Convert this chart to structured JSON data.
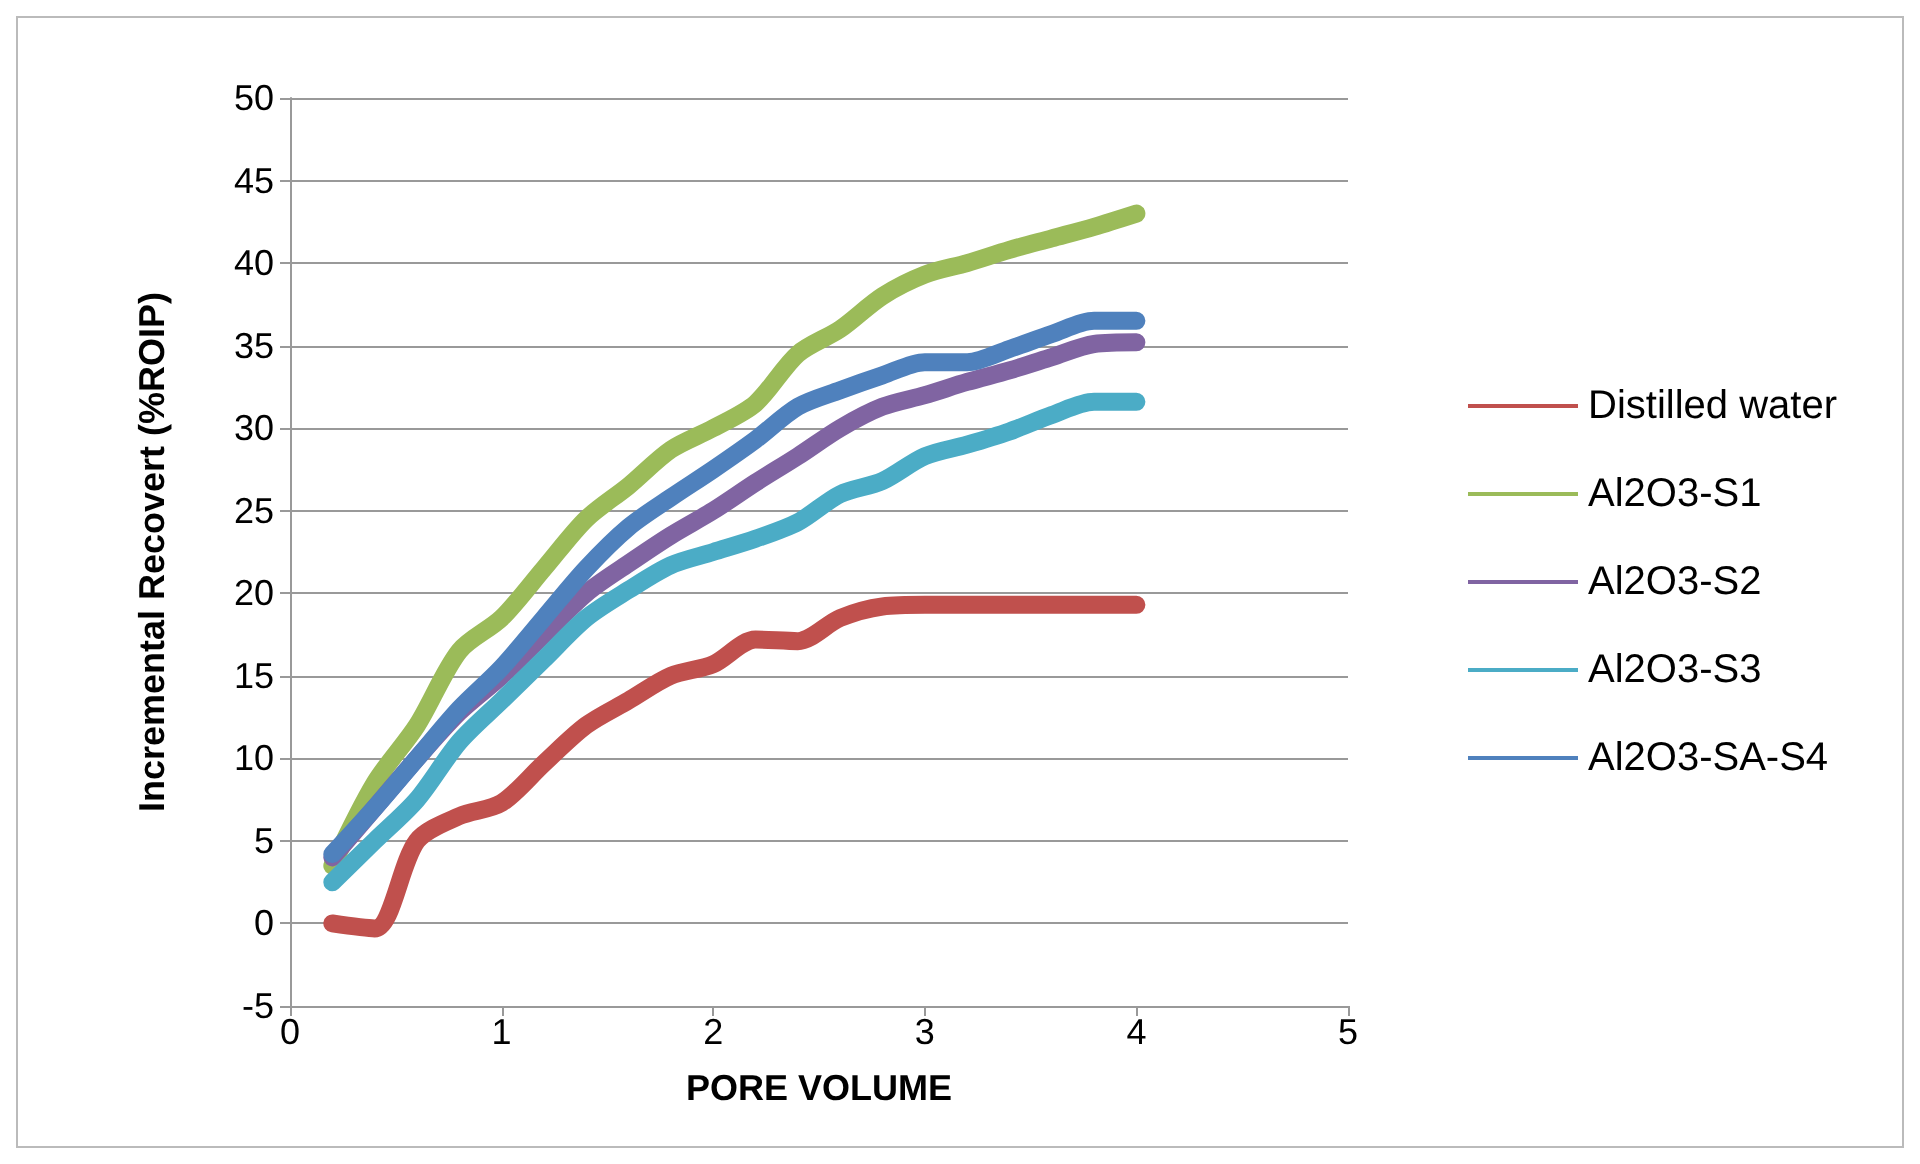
{
  "chart_data": {
    "type": "line",
    "xlabel": "PORE VOLUME",
    "ylabel": "Incremental Recovert (%ROIP)",
    "x": [
      0.2,
      0.4,
      0.6,
      0.8,
      1.0,
      1.2,
      1.4,
      1.6,
      1.8,
      2.0,
      2.2,
      2.4,
      2.6,
      2.8,
      3.0,
      3.2,
      3.4,
      3.6,
      3.8,
      4.0
    ],
    "series": [
      {
        "name": "Distilled water",
        "color": "#c0504d",
        "values": [
          0,
          -0.3,
          5,
          6.5,
          7.3,
          9.7,
          12,
          13.5,
          15,
          15.7,
          17.2,
          17.1,
          18.5,
          19.2,
          19.3,
          19.3,
          19.3,
          19.3,
          19.3,
          19.3
        ]
      },
      {
        "name": "Al2O3-S1",
        "color": "#9bbb59",
        "values": [
          3.5,
          8.5,
          12,
          16.5,
          18.5,
          21.5,
          24.5,
          26.5,
          28.7,
          30,
          31.5,
          34.5,
          36,
          38,
          39.3,
          40,
          40.8,
          41.5,
          42.2,
          43
        ]
      },
      {
        "name": "Al2O3-S2",
        "color": "#8064a2",
        "values": [
          4,
          7,
          10,
          12.8,
          15,
          17.5,
          20,
          21.8,
          23.5,
          25,
          26.7,
          28.3,
          30,
          31.3,
          32,
          32.8,
          33.5,
          34.3,
          35.1,
          35.2
        ]
      },
      {
        "name": "Al2O3-S3",
        "color": "#4bacc6",
        "values": [
          2.5,
          5,
          7.5,
          11,
          13.5,
          16,
          18.5,
          20.2,
          21.7,
          22.5,
          23.3,
          24.3,
          26,
          26.8,
          28.3,
          29,
          29.8,
          30.8,
          31.6,
          31.6
        ]
      },
      {
        "name": "Al2O3-SA-S4",
        "color": "#4f81bd",
        "values": [
          4.2,
          7,
          10,
          13,
          15.5,
          18.5,
          21.5,
          24,
          25.8,
          27.5,
          29.3,
          31.3,
          32.3,
          33.2,
          34,
          34,
          34.8,
          35.7,
          36.5,
          36.5
        ]
      }
    ],
    "xlim": [
      0,
      5
    ],
    "xticks": [
      0,
      1,
      2,
      3,
      4,
      5
    ],
    "ylim": [
      -5,
      50
    ],
    "yticks": [
      -5,
      0,
      5,
      10,
      15,
      20,
      25,
      30,
      35,
      40,
      45,
      50
    ],
    "grid": "y",
    "legend": "right",
    "marker": "none",
    "line_style": "solid"
  }
}
